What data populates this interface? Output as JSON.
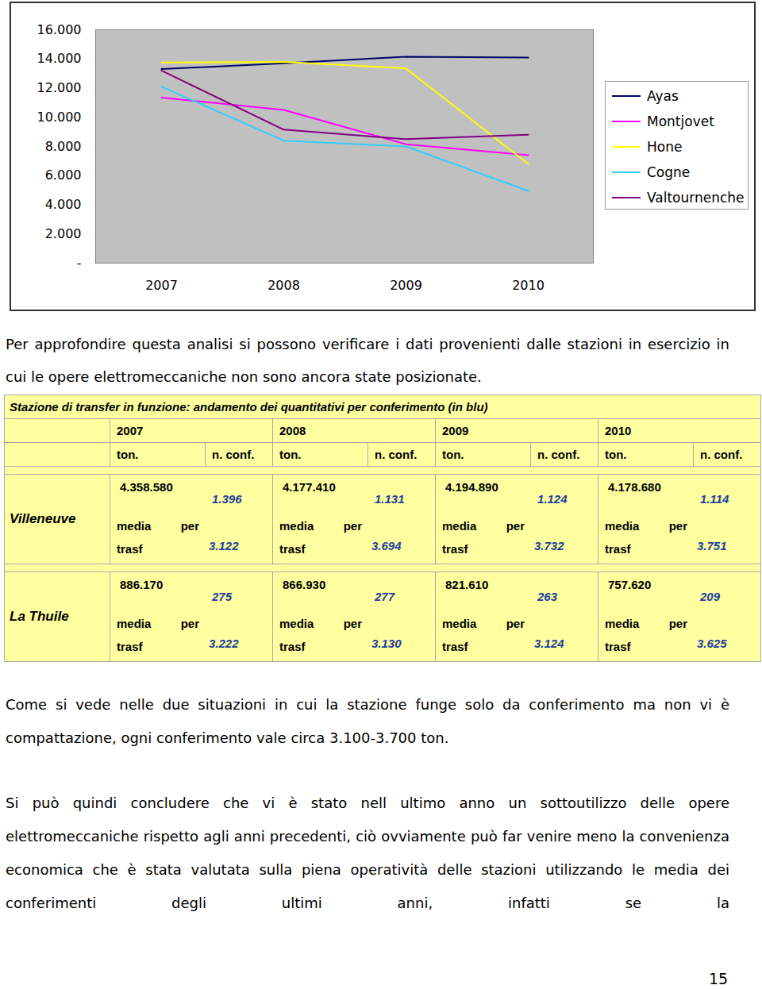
{
  "chart_data": {
    "type": "line",
    "categories": [
      "2007",
      "2008",
      "2009",
      "2010"
    ],
    "series": [
      {
        "name": "Ayas",
        "color": "#000066",
        "values": [
          13300,
          13700,
          14150,
          14100
        ]
      },
      {
        "name": "Montjovet",
        "color": "#ff00ff",
        "values": [
          11350,
          10500,
          8150,
          7400
        ]
      },
      {
        "name": "Hone",
        "color": "#ffff00",
        "values": [
          13750,
          13800,
          13350,
          6800
        ]
      },
      {
        "name": "Cogne",
        "color": "#33ccff",
        "values": [
          12100,
          8400,
          8000,
          4950
        ]
      },
      {
        "name": "Valtournenche",
        "color": "#800080",
        "values": [
          13200,
          9150,
          8500,
          8800
        ]
      }
    ],
    "ylim": [
      0,
      16000
    ],
    "yticks": [
      {
        "value": 0,
        "label": "-"
      },
      {
        "value": 2000,
        "label": "2.000"
      },
      {
        "value": 4000,
        "label": "4.000"
      },
      {
        "value": 6000,
        "label": "6.000"
      },
      {
        "value": 8000,
        "label": "8.000"
      },
      {
        "value": 10000,
        "label": "10.000"
      },
      {
        "value": 12000,
        "label": "12.000"
      },
      {
        "value": 14000,
        "label": "14.000"
      },
      {
        "value": 16000,
        "label": "16.000"
      }
    ],
    "grid": false,
    "legend": "right"
  },
  "document": {
    "paragraphs": [
      "Per approfondire questa analisi si possono verificare i dati provenienti dalle stazioni in esercizio in cui le opere elettromeccaniche non sono ancora state posizionate.",
      "Come si vede nelle due situazioni in cui la stazione funge solo da conferimento ma non vi è compattazione, ogni conferimento vale circa 3.100-3.700 ton.",
      "Si può quindi concludere che vi è stato nell ultimo anno un sottoutilizzo delle opere elettromeccaniche rispetto agli anni precedenti, ciò ovviamente può far venire meno la convenienza economica che è stata valutata sulla piena operatività delle stazioni utilizzando le media dei conferimenti degli ultimi anni, infatti se la"
    ],
    "table": {
      "title": "Stazione di transfer in funzione: andamento dei quantitativi per conferimento (in blu)",
      "years": [
        "2007",
        "2008",
        "2009",
        "2010"
      ],
      "subheaders": [
        "ton.",
        "n. conf.",
        "ton.",
        "n. conf.",
        "ton.",
        "n. conf.",
        "ton.",
        "n. conf."
      ],
      "rows": [
        {
          "station": "Villeneuve",
          "cells": [
            {
              "ton": "4.358.580",
              "conf": "1.396",
              "media_label": "media per trasf",
              "media": "3.122"
            },
            {
              "ton": "4.177.410",
              "conf": "1.131",
              "media_label": "media per trasf",
              "media": "3.694"
            },
            {
              "ton": "4.194.890",
              "conf": "1.124",
              "media_label": "media per trasf",
              "media": "3.732"
            },
            {
              "ton": "4.178.680",
              "conf": "1.114",
              "media_label": "media per trasf",
              "media": "3.751"
            }
          ]
        },
        {
          "station": "La Thuile",
          "cells": [
            {
              "ton": "886.170",
              "conf": "275",
              "media_label": "media per trasf",
              "media": "3.222"
            },
            {
              "ton": "866.930",
              "conf": "277",
              "media_label": "media per trasf",
              "media": "3.130"
            },
            {
              "ton": "821.610",
              "conf": "263",
              "media_label": "media per trasf",
              "media": "3.124"
            },
            {
              "ton": "757.620",
              "conf": "209",
              "media_label": "media per trasf",
              "media": "3.625"
            }
          ]
        }
      ]
    },
    "page_number": "15"
  }
}
